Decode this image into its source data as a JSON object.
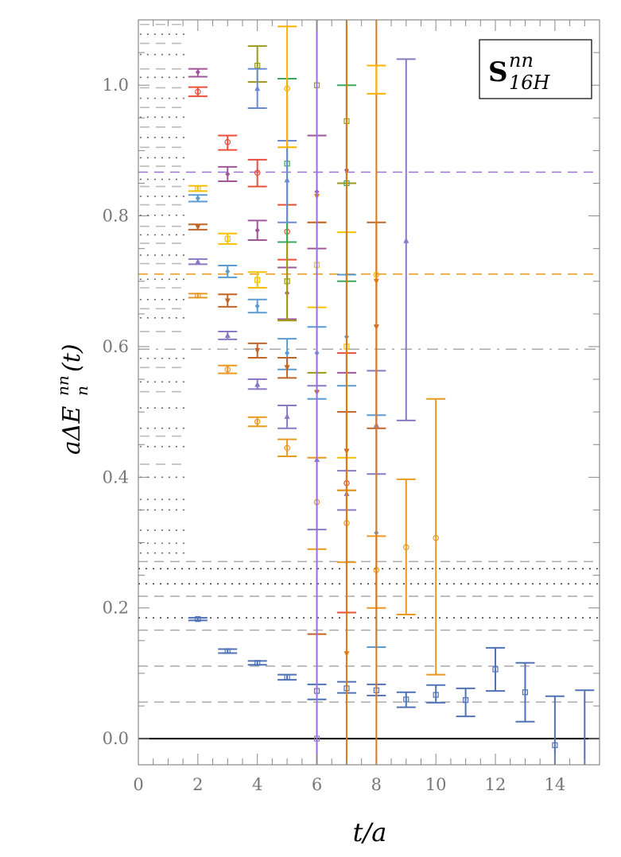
{
  "chart_data": {
    "type": "scatter",
    "title": "",
    "legend_label": {
      "base": "S",
      "sup": "nn",
      "sub": "16H"
    },
    "legend_placement": "top-right",
    "xlabel": "t/a",
    "ylabel": {
      "main": "aΔE",
      "sup": "nn",
      "sub": "n",
      "tail": "(t)"
    },
    "xlim": [
      0,
      15.5
    ],
    "ylim": [
      -0.04,
      1.1
    ],
    "xticks": [
      "0",
      "2",
      "4",
      "6",
      "8",
      "10",
      "12",
      "14"
    ],
    "xtick_values": [
      0,
      2,
      4,
      6,
      8,
      10,
      12,
      14
    ],
    "yticks": [
      "0.0",
      "0.2",
      "0.4",
      "0.6",
      "0.8",
      "1.0"
    ],
    "ytick_values": [
      0,
      0.2,
      0.4,
      0.6,
      0.8,
      1.0
    ],
    "reference_lines": [
      {
        "value": 0.867,
        "style": "dashed",
        "color": "#9a74d6"
      },
      {
        "value": 0.711,
        "style": "dashed",
        "color": "#e89a20"
      },
      {
        "value": 0.596,
        "style": "dashdot",
        "color": "#aaaaaa"
      },
      {
        "value": 0.271,
        "style": "dashed",
        "color": "#aaaaaa"
      },
      {
        "value": 0.26,
        "style": "dotted",
        "color": "#333333"
      },
      {
        "value": 0.237,
        "style": "dotted",
        "color": "#333333"
      },
      {
        "value": 0.218,
        "style": "dashed",
        "color": "#aaaaaa"
      },
      {
        "value": 0.185,
        "style": "dotted",
        "color": "#333333"
      },
      {
        "value": 0.166,
        "style": "dashed",
        "color": "#aaaaaa"
      },
      {
        "value": 0.111,
        "style": "dashed",
        "color": "#aaaaaa"
      },
      {
        "value": 0.056,
        "style": "dashed",
        "color": "#aaaaaa"
      },
      {
        "value": 0.0,
        "style": "solid",
        "color": "#000000"
      }
    ],
    "spectrum_levels": [
      {
        "value": 1.093,
        "style": "dashed"
      },
      {
        "value": 1.078,
        "style": "dotted"
      },
      {
        "value": 1.064,
        "style": "dashed"
      },
      {
        "value": 1.047,
        "style": "dotted"
      },
      {
        "value": 1.025,
        "style": "dashed"
      },
      {
        "value": 1.012,
        "style": "dotted"
      },
      {
        "value": 0.996,
        "style": "dashed"
      },
      {
        "value": 0.98,
        "style": "dotted"
      },
      {
        "value": 0.966,
        "style": "dashed"
      },
      {
        "value": 0.951,
        "style": "dotted"
      },
      {
        "value": 0.936,
        "style": "dashed"
      },
      {
        "value": 0.92,
        "style": "dotted"
      },
      {
        "value": 0.905,
        "style": "dashed"
      },
      {
        "value": 0.889,
        "style": "dotted"
      },
      {
        "value": 0.876,
        "style": "dashed"
      },
      {
        "value": 0.856,
        "style": "dotted"
      },
      {
        "value": 0.845,
        "style": "dashed"
      },
      {
        "value": 0.83,
        "style": "dotted"
      },
      {
        "value": 0.817,
        "style": "dashed"
      },
      {
        "value": 0.801,
        "style": "dotted"
      },
      {
        "value": 0.784,
        "style": "dashed"
      },
      {
        "value": 0.771,
        "style": "dotted"
      },
      {
        "value": 0.758,
        "style": "dashed"
      },
      {
        "value": 0.74,
        "style": "dotted"
      },
      {
        "value": 0.727,
        "style": "dashed"
      },
      {
        "value": 0.703,
        "style": "dotted"
      },
      {
        "value": 0.69,
        "style": "dashed"
      },
      {
        "value": 0.672,
        "style": "dotted"
      },
      {
        "value": 0.658,
        "style": "dashed"
      },
      {
        "value": 0.644,
        "style": "dotted"
      },
      {
        "value": 0.623,
        "style": "dashed"
      },
      {
        "value": 0.582,
        "style": "dotted"
      },
      {
        "value": 0.568,
        "style": "dashed"
      },
      {
        "value": 0.546,
        "style": "dotted"
      },
      {
        "value": 0.531,
        "style": "dashed"
      },
      {
        "value": 0.506,
        "style": "dotted"
      },
      {
        "value": 0.475,
        "style": "dotted"
      },
      {
        "value": 0.463,
        "style": "dashed"
      },
      {
        "value": 0.447,
        "style": "dotted"
      },
      {
        "value": 0.42,
        "style": "dashed"
      },
      {
        "value": 0.4,
        "style": "dotted"
      },
      {
        "value": 0.366,
        "style": "dotted"
      },
      {
        "value": 0.35,
        "style": "dotted"
      },
      {
        "value": 0.319,
        "style": "dotted"
      },
      {
        "value": 0.299,
        "style": "dotted"
      },
      {
        "value": 0.284,
        "style": "dotted"
      }
    ],
    "series": [
      {
        "name": "blue-square",
        "color": "#4f72b5",
        "marker": "square",
        "points": [
          [
            2,
            0.183,
            0.181,
            0.185
          ],
          [
            3,
            0.134,
            0.131,
            0.137
          ],
          [
            4,
            0.116,
            0.113,
            0.119
          ],
          [
            5,
            0.094,
            0.09,
            0.098
          ],
          [
            6,
            0.073,
            0.06,
            0.083
          ],
          [
            7,
            0.077,
            0.07,
            0.087
          ],
          [
            8,
            0.074,
            0.066,
            0.083
          ],
          [
            9,
            0.06,
            0.048,
            0.071
          ],
          [
            10,
            0.067,
            0.055,
            0.082
          ],
          [
            11,
            0.059,
            0.034,
            0.077
          ],
          [
            12,
            0.106,
            0.073,
            0.139
          ],
          [
            13,
            0.071,
            0.026,
            0.116
          ],
          [
            14,
            -0.01,
            -0.06,
            0.065
          ],
          [
            15,
            -0.06,
            -0.12,
            0.074
          ]
        ]
      },
      {
        "name": "red-circle",
        "color": "#e8503a",
        "marker": "circle",
        "points": [
          [
            2,
            0.99,
            0.983,
            0.997
          ],
          [
            3,
            0.913,
            0.901,
            0.923
          ],
          [
            4,
            0.866,
            0.845,
            0.886
          ],
          [
            5,
            0.776,
            0.733,
            0.817
          ],
          [
            7,
            0.391,
            0.193,
            0.59
          ]
        ]
      },
      {
        "name": "magenta-diamond",
        "color": "#a0569a",
        "marker": "diamond",
        "points": [
          [
            2,
            1.02,
            1.013,
            1.025
          ],
          [
            3,
            0.864,
            0.853,
            0.875
          ],
          [
            4,
            0.778,
            0.763,
            0.793
          ],
          [
            5,
            0.682,
            0.642,
            0.721
          ],
          [
            6,
            0.837,
            0.75,
            0.923
          ],
          [
            7,
            0.87,
            0.56,
            1.15
          ]
        ]
      },
      {
        "name": "yellow-square",
        "color": "#f5c000",
        "marker": "square",
        "points": [
          [
            2,
            0.842,
            0.838,
            0.846
          ],
          [
            3,
            0.765,
            0.757,
            0.773
          ],
          [
            4,
            0.702,
            0.69,
            0.714
          ],
          [
            5,
            0.7,
            0.64,
            0.76
          ],
          [
            6,
            0.725,
            0.66,
            0.79
          ],
          [
            7,
            0.6,
            0.43,
            0.775
          ]
        ]
      },
      {
        "name": "lightblue-diamond",
        "color": "#5b9bd1",
        "marker": "diamond",
        "points": [
          [
            2,
            0.827,
            0.822,
            0.832
          ],
          [
            3,
            0.715,
            0.706,
            0.724
          ],
          [
            4,
            0.662,
            0.652,
            0.672
          ],
          [
            5,
            0.59,
            0.565,
            0.612
          ],
          [
            6,
            0.59,
            0.52,
            0.63
          ],
          [
            7,
            0.615,
            0.54,
            0.71
          ],
          [
            8,
            0.315,
            0.14,
            0.495
          ]
        ]
      },
      {
        "name": "brown-downtriangle",
        "color": "#c0652a",
        "marker": "downtriangle",
        "points": [
          [
            2,
            0.783,
            0.779,
            0.787
          ],
          [
            3,
            0.67,
            0.661,
            0.68
          ],
          [
            4,
            0.594,
            0.583,
            0.605
          ],
          [
            5,
            0.568,
            0.552,
            0.583
          ],
          [
            6,
            0.53,
            0.16,
            0.79
          ],
          [
            7,
            0.44,
            0.38,
            0.5
          ],
          [
            8,
            0.63,
            0.475,
            0.79
          ]
        ]
      },
      {
        "name": "purple-triangle",
        "color": "#8b79c4",
        "marker": "triangle",
        "points": [
          [
            2,
            0.73,
            0.726,
            0.734
          ],
          [
            3,
            0.617,
            0.611,
            0.623
          ],
          [
            4,
            0.542,
            0.535,
            0.55
          ],
          [
            5,
            0.493,
            0.475,
            0.51
          ],
          [
            6,
            0.427,
            0.32,
            0.54
          ],
          [
            7,
            0.375,
            0.35,
            0.41
          ],
          [
            8,
            0.48,
            0.405,
            0.563
          ],
          [
            9,
            0.762,
            0.487,
            1.04
          ]
        ]
      },
      {
        "name": "orange-circle",
        "color": "#e89a20",
        "marker": "circle",
        "points": [
          [
            2,
            0.678,
            0.675,
            0.681
          ],
          [
            3,
            0.565,
            0.559,
            0.571
          ],
          [
            4,
            0.485,
            0.478,
            0.492
          ],
          [
            5,
            0.445,
            0.432,
            0.458
          ],
          [
            6,
            0.362,
            0.29,
            0.43
          ],
          [
            7,
            0.33,
            0.27,
            0.38
          ],
          [
            8,
            0.258,
            0.2,
            0.31
          ],
          [
            9,
            0.293,
            0.19,
            0.397
          ],
          [
            10,
            0.307,
            0.098,
            0.52
          ]
        ]
      },
      {
        "name": "olive-square",
        "color": "#9a9a1a",
        "marker": "square",
        "points": [
          [
            4,
            1.03,
            1.005,
            1.06
          ],
          [
            5,
            0.7,
            0.64,
            1.01
          ],
          [
            6,
            1.0,
            0.56,
            1.16
          ],
          [
            7,
            0.945,
            0.85,
            1.15
          ]
        ]
      },
      {
        "name": "green-square",
        "color": "#3aaa5a",
        "marker": "square",
        "points": [
          [
            5,
            0.88,
            0.76,
            1.01
          ],
          [
            7,
            0.85,
            0.7,
            1.0
          ]
        ]
      },
      {
        "name": "blue-triangle",
        "color": "#6b8ad6",
        "marker": "triangle",
        "points": [
          [
            4,
            0.995,
            0.965,
            1.025
          ],
          [
            5,
            0.855,
            0.79,
            0.915
          ]
        ]
      },
      {
        "name": "darkorange-wide",
        "color": "#e07a10",
        "marker": "downtriangle",
        "points": [
          [
            6,
            0.83,
            -0.2,
            1.2
          ],
          [
            7,
            0.13,
            -0.2,
            1.2
          ],
          [
            8,
            0.7,
            -0.2,
            1.2
          ]
        ]
      },
      {
        "name": "violet-wide",
        "color": "#9a70e0",
        "marker": "square",
        "points": [
          [
            6,
            0.0,
            -0.2,
            1.2
          ]
        ]
      },
      {
        "name": "gold-wide",
        "color": "#ffb000",
        "marker": "circle",
        "points": [
          [
            8,
            0.71,
            0.987,
            1.03
          ],
          [
            5,
            0.995,
            0.905,
            1.09
          ]
        ]
      }
    ]
  }
}
